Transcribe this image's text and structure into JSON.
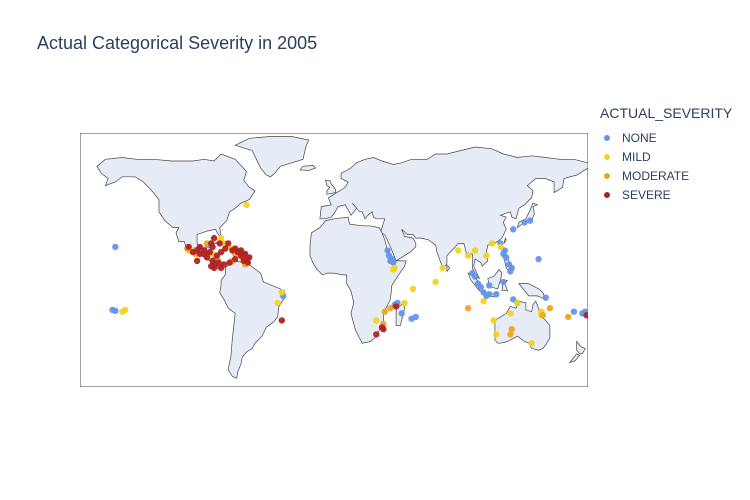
{
  "title": "Actual Categorical Severity in 2005",
  "legend": {
    "title": "ACTUAL_SEVERITY",
    "items": [
      {
        "label": "NONE",
        "color": "#6495ed"
      },
      {
        "label": "MILD",
        "color": "#f5d21f"
      },
      {
        "label": "MODERATE",
        "color": "#f0a41e"
      },
      {
        "label": "SEVERE",
        "color": "#b22222"
      }
    ]
  },
  "map": {
    "land_color": "#e5ecf6",
    "coast_color": "#444444",
    "projection": "equirectangular"
  },
  "chart_data": {
    "type": "scatter",
    "geo": true,
    "series": [
      {
        "name": "NONE",
        "color": "#6495ed",
        "points": [
          [
            -155,
            20
          ],
          [
            -157,
            -16
          ],
          [
            -155,
            -16.5
          ],
          [
            -98,
            18
          ],
          [
            -96,
            19
          ],
          [
            -89,
            21
          ],
          [
            -84,
            13
          ],
          [
            -82,
            9
          ],
          [
            -36,
            -8
          ],
          [
            38,
            18
          ],
          [
            39,
            15
          ],
          [
            40,
            12
          ],
          [
            41,
            13
          ],
          [
            42,
            11
          ],
          [
            55,
            -21
          ],
          [
            58,
            -20
          ],
          [
            43,
            -13
          ],
          [
            48,
            -18
          ],
          [
            45,
            -12
          ],
          [
            98,
            5
          ],
          [
            100,
            3
          ],
          [
            102,
            -1
          ],
          [
            104,
            -3
          ],
          [
            106,
            -6
          ],
          [
            110,
            -7
          ],
          [
            108,
            -8
          ],
          [
            115,
            -7
          ],
          [
            122,
            14
          ],
          [
            120,
            16
          ],
          [
            121,
            18
          ],
          [
            118,
            22
          ],
          [
            124,
            10
          ],
          [
            126,
            8
          ],
          [
            125,
            6
          ],
          [
            120,
            0
          ],
          [
            110,
            -2
          ],
          [
            127,
            30
          ],
          [
            135,
            34
          ],
          [
            139,
            35
          ],
          [
            145,
            13
          ],
          [
            130,
            -12
          ],
          [
            127,
            -10
          ],
          [
            170,
            -17
          ],
          [
            176,
            -18
          ],
          [
            178,
            -17
          ],
          [
            150,
            -9
          ]
        ]
      },
      {
        "name": "MILD",
        "color": "#f5d21f",
        "points": [
          [
            -148,
            -16
          ],
          [
            -150,
            -17
          ],
          [
            -62,
            44
          ],
          [
            -66,
            18
          ],
          [
            -72,
            19
          ],
          [
            -78,
            22
          ],
          [
            -80,
            25
          ],
          [
            -76,
            21
          ],
          [
            -100,
            18
          ],
          [
            -103,
            18
          ],
          [
            -86,
            16
          ],
          [
            -37,
            -6
          ],
          [
            -40,
            -12
          ],
          [
            42,
            7
          ],
          [
            43,
            8
          ],
          [
            56,
            -4
          ],
          [
            50,
            -12
          ],
          [
            30,
            -22
          ],
          [
            72,
            0
          ],
          [
            77,
            8
          ],
          [
            88,
            18
          ],
          [
            95,
            15
          ],
          [
            100,
            18
          ],
          [
            108,
            15
          ],
          [
            112,
            22
          ],
          [
            118,
            20
          ],
          [
            106,
            -11
          ],
          [
            130,
            -12
          ],
          [
            147,
            -17
          ],
          [
            147,
            -19
          ],
          [
            115,
            -30
          ],
          [
            140,
            -35
          ],
          [
            125,
            -18
          ],
          [
            113,
            -22
          ]
        ]
      },
      {
        "name": "MODERATE",
        "color": "#f0a41e",
        "points": [
          [
            -104,
            19
          ],
          [
            -98,
            16
          ],
          [
            -72,
            12
          ],
          [
            -65,
            14
          ],
          [
            -70,
            16
          ],
          [
            -82,
            12
          ],
          [
            -89,
            16
          ],
          [
            -90,
            22
          ],
          [
            -63,
            10
          ],
          [
            36,
            -17
          ],
          [
            35,
            -24
          ],
          [
            40,
            -15
          ],
          [
            126,
            -27
          ],
          [
            125,
            -30
          ],
          [
            148,
            -19
          ],
          [
            153,
            -15
          ],
          [
            166,
            -20
          ],
          [
            95,
            -15
          ]
        ]
      },
      {
        "name": "SEVERE",
        "color": "#b22222",
        "points": [
          [
            -103,
            20
          ],
          [
            -97,
            18
          ],
          [
            -95,
            20
          ],
          [
            -92,
            18
          ],
          [
            -87,
            22
          ],
          [
            -85,
            25
          ],
          [
            -86,
            20
          ],
          [
            -88,
            17
          ],
          [
            -81,
            22
          ],
          [
            -77,
            19
          ],
          [
            -72,
            18
          ],
          [
            -70,
            19
          ],
          [
            -66,
            18
          ],
          [
            -64,
            12
          ],
          [
            -63,
            16
          ],
          [
            -60,
            14
          ],
          [
            -61,
            11
          ],
          [
            -62,
            13
          ],
          [
            -64,
            16
          ],
          [
            -66,
            15
          ],
          [
            -68,
            17
          ],
          [
            -75,
            22
          ],
          [
            -80,
            17
          ],
          [
            -83,
            15
          ],
          [
            -78,
            10
          ],
          [
            -80,
            8
          ],
          [
            -84,
            10
          ],
          [
            -86,
            12
          ],
          [
            -90,
            14
          ],
          [
            -92,
            16
          ],
          [
            -95,
            16
          ],
          [
            -100,
            17
          ],
          [
            -97,
            12
          ],
          [
            -87,
            9
          ],
          [
            -85,
            8
          ],
          [
            -82,
            11
          ],
          [
            -74,
            11
          ],
          [
            -70,
            13
          ],
          [
            -37,
            -22
          ],
          [
            44,
            -14
          ],
          [
            35,
            -27
          ],
          [
            30,
            -30
          ],
          [
            34,
            -26
          ],
          [
            179,
            -19
          ]
        ]
      }
    ]
  }
}
